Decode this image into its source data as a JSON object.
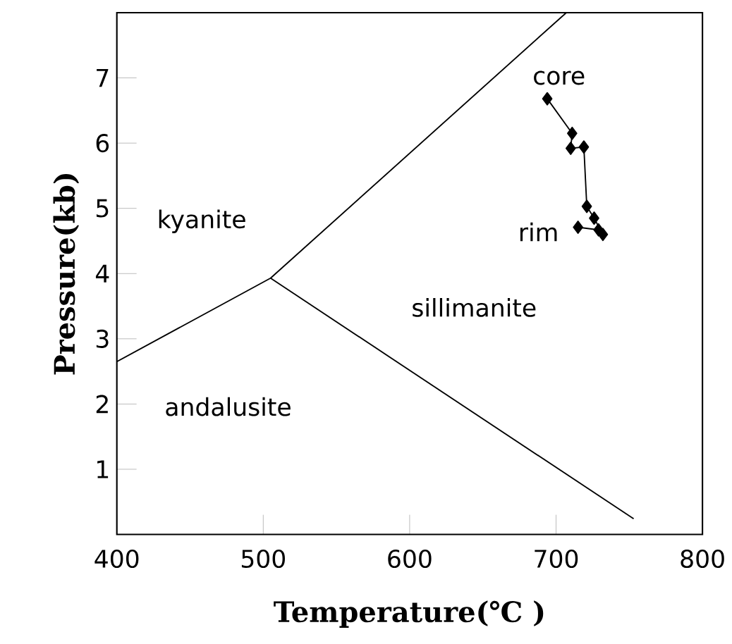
{
  "chart_data": {
    "type": "line",
    "xlabel": "Temperature(℃ )",
    "ylabel": "Pressure(kb)",
    "xlim": [
      400,
      800
    ],
    "ylim": [
      0,
      8
    ],
    "xticks": [
      400,
      500,
      600,
      700,
      800
    ],
    "yticks": [
      1,
      2,
      3,
      4,
      5,
      6,
      7
    ],
    "grid": false,
    "series": [
      {
        "color": "#000000",
        "x": [
          400,
          505,
          707
        ],
        "values": [
          2.65,
          3.93,
          8
        ]
      },
      {
        "color": "#000000",
        "x": [
          505,
          753
        ],
        "values": [
          3.93,
          0.24
        ]
      },
      {
        "color": "#000000",
        "marker": "diamond",
        "x": [
          715,
          729,
          732,
          726,
          721,
          719,
          710,
          711,
          694
        ],
        "values": [
          4.71,
          4.67,
          4.6,
          4.85,
          5.03,
          5.94,
          5.92,
          6.15,
          6.68
        ]
      }
    ],
    "annotations": [
      "core",
      "rim",
      "kyanite",
      "sillimanite",
      "andalusite"
    ]
  }
}
